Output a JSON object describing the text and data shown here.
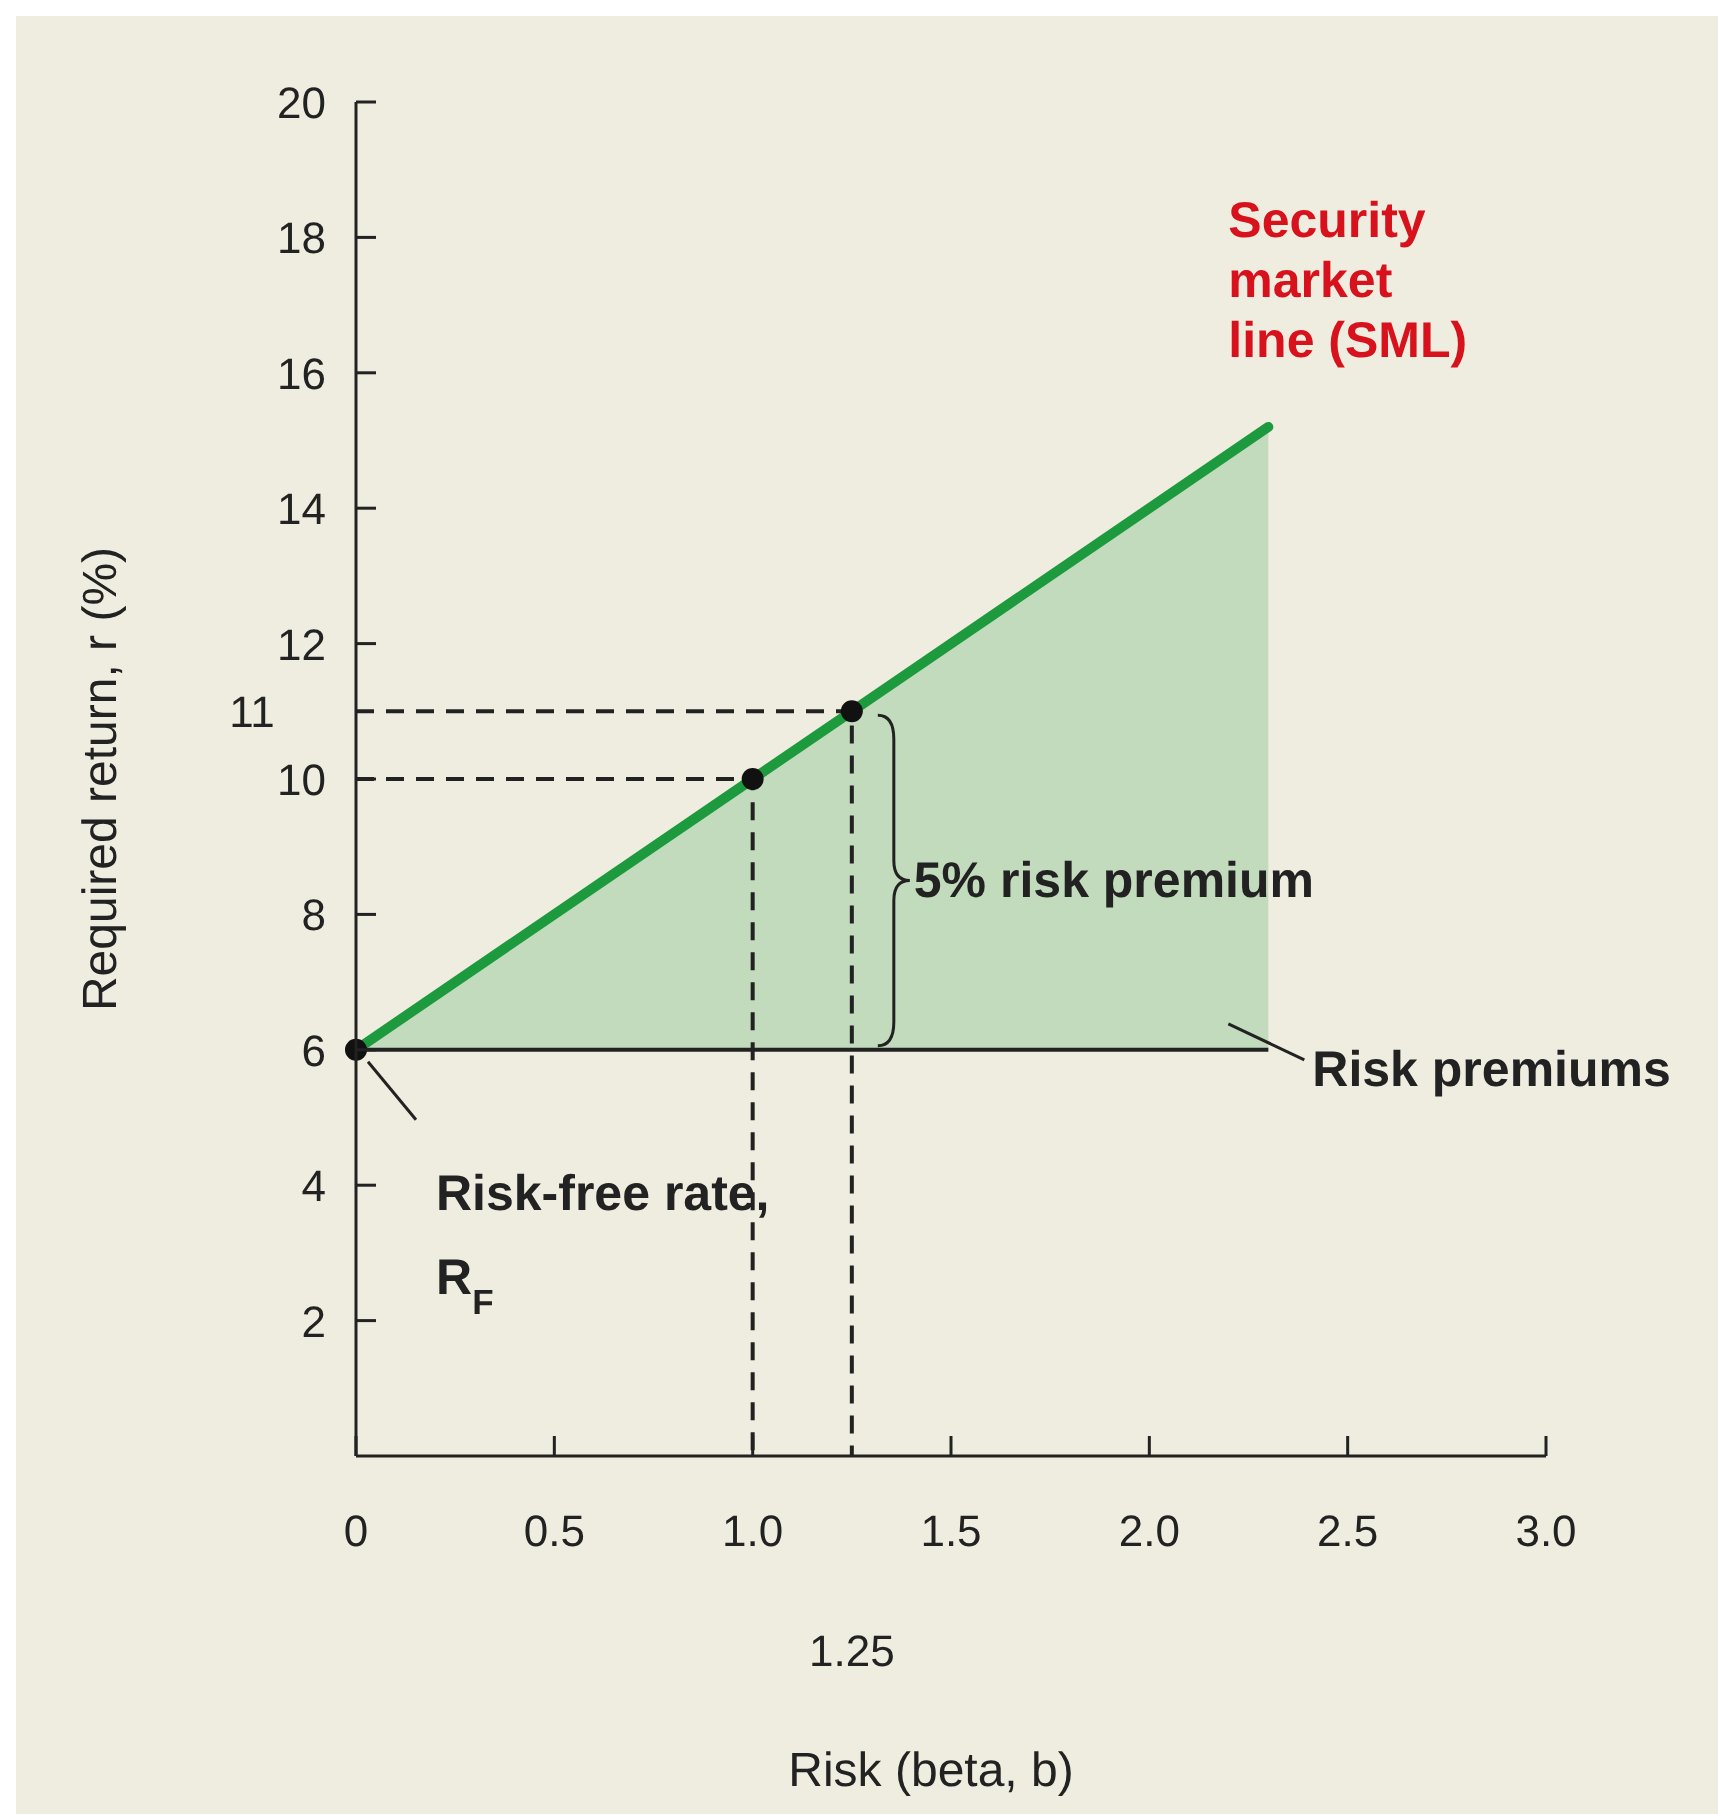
{
  "chart_data": {
    "type": "line",
    "xlabel": "Risk (beta, b)",
    "ylabel": "Required return, r (%)",
    "xlim": [
      0,
      3
    ],
    "ylim": [
      0,
      20
    ],
    "xticks": [
      0,
      0.5,
      {
        "value": 1,
        "label": "1.0"
      },
      1.5,
      {
        "value": 2,
        "label": "2.0"
      },
      2.5,
      {
        "value": 3,
        "label": "3.0"
      }
    ],
    "yticks": [
      2,
      4,
      6,
      8,
      10,
      12,
      14,
      16,
      18,
      20
    ],
    "series": [
      {
        "name": "Security market line (SML)",
        "color": "#1e9a3e",
        "x": [
          0,
          1,
          1.25,
          2.3
        ],
        "values": [
          6,
          10,
          11,
          15.2
        ],
        "lower": [
          6,
          6,
          6,
          6
        ],
        "upper": [
          6,
          10,
          11,
          15.2
        ]
      },
      {
        "color": "#222222",
        "x": [
          0,
          2.3
        ],
        "values": [
          6,
          6
        ]
      },
      {
        "color": "#222222",
        "line_style": "dashed",
        "x": [
          0,
          1,
          1
        ],
        "values": [
          10,
          10,
          0
        ]
      },
      {
        "color": "#222222",
        "line_style": "dashed",
        "x": [
          0,
          1.25,
          1.25
        ],
        "values": [
          11,
          11,
          0
        ]
      },
      {
        "type": "scatter",
        "color": "#111111",
        "marker": "circle",
        "x": [
          0,
          1,
          1.25
        ],
        "values": [
          6,
          10,
          11
        ]
      }
    ],
    "annotations": [
      {
        "text": "Risk-free rate, R$_{F}$",
        "x": 0,
        "y": 6
      },
      {
        "text": "5% risk premium",
        "x": 1.25,
        "y": 8.5
      },
      {
        "text": "Risk premiums",
        "x": 2.3,
        "y": 6
      },
      {
        "text": "11",
        "x": 0,
        "y": 11
      },
      "1.25"
    ]
  }
}
